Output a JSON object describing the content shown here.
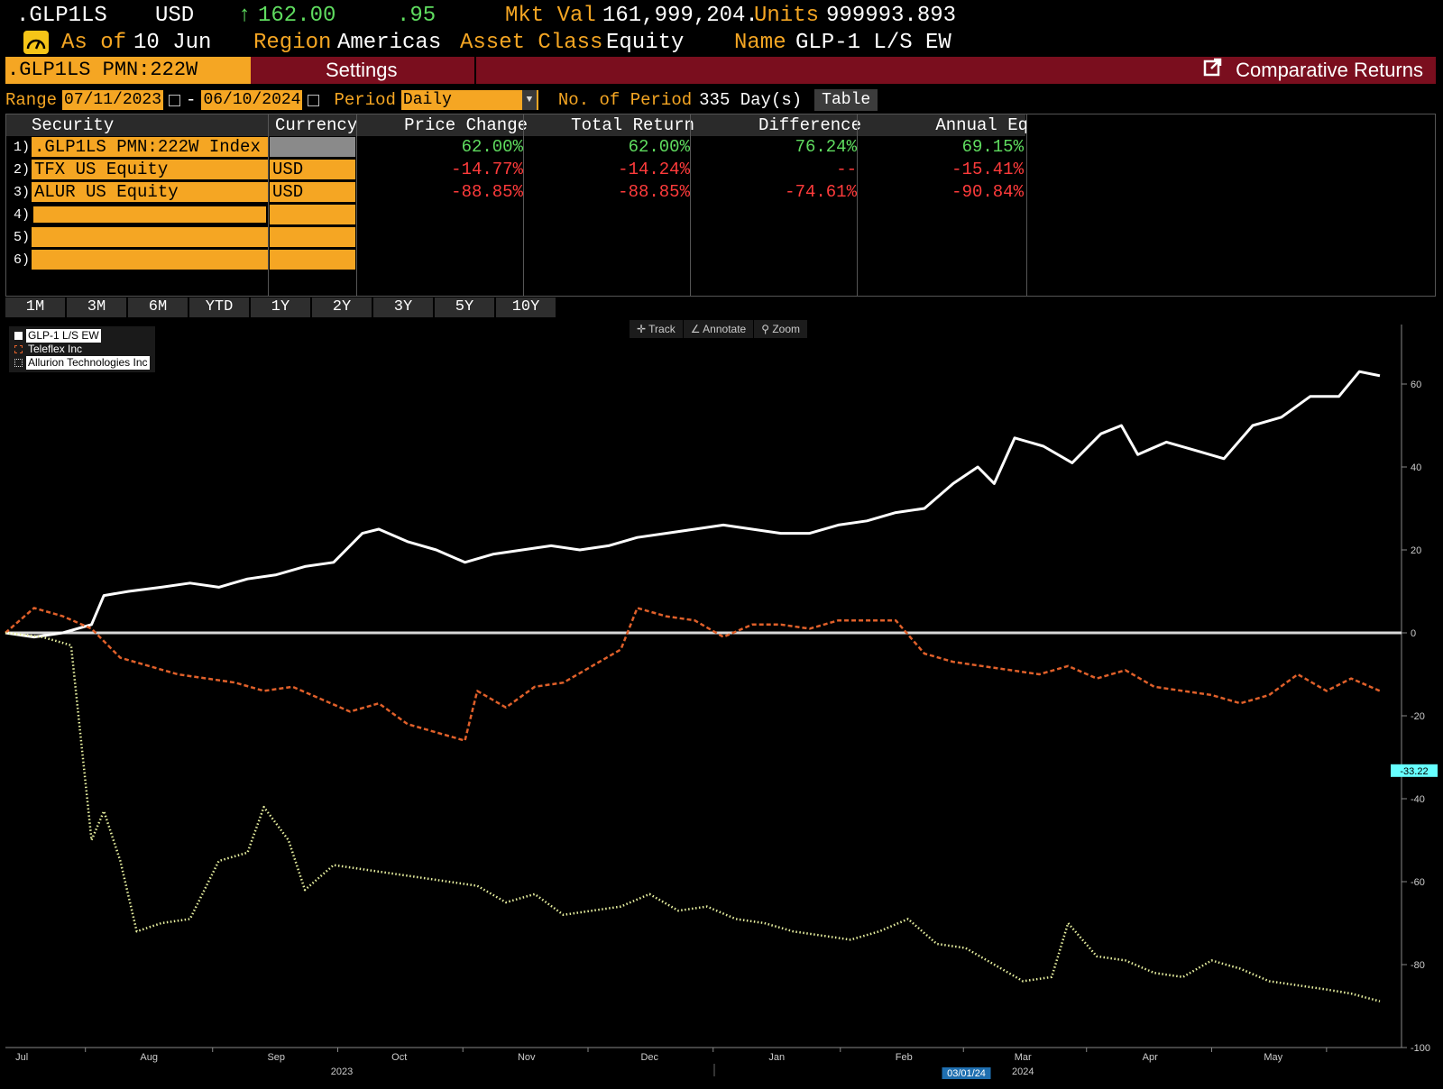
{
  "header": {
    "ticker": ".GLP1LS",
    "currency": "USD",
    "arrow": "↑",
    "price": "162.00",
    "change": ".95",
    "mkt_val_label": "Mkt Val",
    "mkt_val": "161,999,204.8",
    "units_label": "Units",
    "units": "999993.893",
    "as_of_label": "As of",
    "as_of": "10 Jun",
    "region_label": "Region",
    "region": "Americas",
    "asset_class_label": "Asset Class",
    "asset_class": "Equity",
    "name_label": "Name",
    "name": "GLP-1 L/S EW"
  },
  "toolbar": {
    "security_tab": ".GLP1LS PMN:222W Index",
    "settings": "Settings",
    "comparative_returns": "Comparative Returns"
  },
  "controls": {
    "range_label": "Range",
    "start_date": "07/11/2023",
    "dash": "-",
    "end_date": "06/10/2024",
    "period_label": "Period",
    "period": "Daily",
    "num_periods_label": "No. of Period",
    "num_periods": "335 Day(s)",
    "table_button": "Table"
  },
  "table": {
    "columns": [
      "Security",
      "Currency",
      "Price Change",
      "Total Return",
      "Difference",
      "Annual Eq"
    ],
    "rows": [
      {
        "num": "1)",
        "security": ".GLP1LS PMN:222W Index",
        "currency": "",
        "price_change": "62.00%",
        "total_return": "62.00%",
        "difference": "76.24%",
        "annual_eq": "69.15%"
      },
      {
        "num": "2)",
        "security": "TFX US Equity",
        "currency": "USD",
        "price_change": "-14.77%",
        "total_return": "-14.24%",
        "difference": "--",
        "annual_eq": "-15.41%"
      },
      {
        "num": "3)",
        "security": "ALUR US Equity",
        "currency": "USD",
        "price_change": "-88.85%",
        "total_return": "-88.85%",
        "difference": "-74.61%",
        "annual_eq": "-90.84%"
      },
      {
        "num": "4)",
        "security": "",
        "currency": "",
        "price_change": "",
        "total_return": "",
        "difference": "",
        "annual_eq": ""
      },
      {
        "num": "5)",
        "security": "",
        "currency": "",
        "price_change": "",
        "total_return": "",
        "difference": "",
        "annual_eq": ""
      },
      {
        "num": "6)",
        "security": "",
        "currency": "",
        "price_change": "",
        "total_return": "",
        "difference": "",
        "annual_eq": ""
      }
    ]
  },
  "period_buttons": [
    "1M",
    "3M",
    "6M",
    "YTD",
    "1Y",
    "2Y",
    "3Y",
    "5Y",
    "10Y"
  ],
  "chart_tools": [
    "Track",
    "Annotate",
    "Zoom"
  ],
  "colors": {
    "accent_orange": "#f5a623",
    "bar_red": "#7a0e1e",
    "glp1": "#ffffff",
    "teleflex": "#e0602a",
    "allurion": "#e8f0a0",
    "cursor_label": "#66ffff"
  },
  "chart_data": {
    "type": "line",
    "title": "",
    "xlabel": "",
    "ylabel": "",
    "legend_position": "top-left",
    "y_ticks": [
      "60",
      "40",
      "20",
      "0",
      "-20",
      "-40",
      "-60",
      "-80",
      "-100"
    ],
    "ylim": [
      -100,
      70
    ],
    "x_range": [
      "2023-07-11",
      "2024-06-10"
    ],
    "month_labels": [
      {
        "label": "Jul",
        "date": "2023-07-15"
      },
      {
        "label": "Aug",
        "date": "2023-08-15"
      },
      {
        "label": "Sep",
        "date": "2023-09-15"
      },
      {
        "label": "Oct",
        "date": "2023-10-15"
      },
      {
        "label": "Nov",
        "date": "2023-11-15"
      },
      {
        "label": "Dec",
        "date": "2023-12-15"
      },
      {
        "label": "Jan",
        "date": "2024-01-15"
      },
      {
        "label": "Feb",
        "date": "2024-02-15"
      },
      {
        "label": "Mar",
        "date": "2024-03-15"
      },
      {
        "label": "Apr",
        "date": "2024-04-15"
      },
      {
        "label": "May",
        "date": "2024-05-15"
      }
    ],
    "year_labels": [
      {
        "label": "2023",
        "date": "2023-10-01"
      },
      {
        "label": "2024",
        "date": "2024-03-15"
      }
    ],
    "cursor_date_label": "03/01/24",
    "cursor_date": "2024-03-01",
    "cursor_value_label": "-33.22",
    "cursor_value": -33.22,
    "series": [
      {
        "name": "GLP-1 L/S EW",
        "style": "solid",
        "points": [
          [
            "2023-07-11",
            0
          ],
          [
            "2023-07-18",
            -1
          ],
          [
            "2023-07-25",
            0
          ],
          [
            "2023-08-01",
            2
          ],
          [
            "2023-08-04",
            9
          ],
          [
            "2023-08-10",
            10
          ],
          [
            "2023-08-18",
            11
          ],
          [
            "2023-08-25",
            12
          ],
          [
            "2023-09-01",
            11
          ],
          [
            "2023-09-08",
            13
          ],
          [
            "2023-09-15",
            14
          ],
          [
            "2023-09-22",
            16
          ],
          [
            "2023-09-29",
            17
          ],
          [
            "2023-10-06",
            24
          ],
          [
            "2023-10-10",
            25
          ],
          [
            "2023-10-17",
            22
          ],
          [
            "2023-10-24",
            20
          ],
          [
            "2023-10-31",
            17
          ],
          [
            "2023-11-07",
            19
          ],
          [
            "2023-11-14",
            20
          ],
          [
            "2023-11-21",
            21
          ],
          [
            "2023-11-28",
            20
          ],
          [
            "2023-12-05",
            21
          ],
          [
            "2023-12-12",
            23
          ],
          [
            "2023-12-19",
            24
          ],
          [
            "2023-12-26",
            25
          ],
          [
            "2024-01-02",
            26
          ],
          [
            "2024-01-09",
            25
          ],
          [
            "2024-01-16",
            24
          ],
          [
            "2024-01-23",
            24
          ],
          [
            "2024-01-30",
            26
          ],
          [
            "2024-02-06",
            27
          ],
          [
            "2024-02-13",
            29
          ],
          [
            "2024-02-20",
            30
          ],
          [
            "2024-02-27",
            36
          ],
          [
            "2024-03-04",
            40
          ],
          [
            "2024-03-08",
            36
          ],
          [
            "2024-03-13",
            47
          ],
          [
            "2024-03-20",
            45
          ],
          [
            "2024-03-27",
            41
          ],
          [
            "2024-04-03",
            48
          ],
          [
            "2024-04-08",
            50
          ],
          [
            "2024-04-12",
            43
          ],
          [
            "2024-04-19",
            46
          ],
          [
            "2024-04-26",
            44
          ],
          [
            "2024-05-03",
            42
          ],
          [
            "2024-05-10",
            50
          ],
          [
            "2024-05-17",
            52
          ],
          [
            "2024-05-24",
            57
          ],
          [
            "2024-05-31",
            57
          ],
          [
            "2024-06-05",
            63
          ],
          [
            "2024-06-10",
            62
          ]
        ]
      },
      {
        "name": "Teleflex Inc",
        "style": "dashed",
        "points": [
          [
            "2023-07-11",
            0
          ],
          [
            "2023-07-18",
            6
          ],
          [
            "2023-07-25",
            4
          ],
          [
            "2023-08-01",
            1
          ],
          [
            "2023-08-08",
            -6
          ],
          [
            "2023-08-15",
            -8
          ],
          [
            "2023-08-22",
            -10
          ],
          [
            "2023-08-29",
            -11
          ],
          [
            "2023-09-05",
            -12
          ],
          [
            "2023-09-12",
            -14
          ],
          [
            "2023-09-19",
            -13
          ],
          [
            "2023-09-26",
            -16
          ],
          [
            "2023-10-03",
            -19
          ],
          [
            "2023-10-10",
            -17
          ],
          [
            "2023-10-17",
            -22
          ],
          [
            "2023-10-24",
            -24
          ],
          [
            "2023-10-31",
            -26
          ],
          [
            "2023-11-03",
            -14
          ],
          [
            "2023-11-10",
            -18
          ],
          [
            "2023-11-17",
            -13
          ],
          [
            "2023-11-24",
            -12
          ],
          [
            "2023-12-01",
            -8
          ],
          [
            "2023-12-08",
            -4
          ],
          [
            "2023-12-12",
            6
          ],
          [
            "2023-12-19",
            4
          ],
          [
            "2023-12-26",
            3
          ],
          [
            "2024-01-02",
            -1
          ],
          [
            "2024-01-09",
            2
          ],
          [
            "2024-01-16",
            2
          ],
          [
            "2024-01-23",
            1
          ],
          [
            "2024-01-30",
            3
          ],
          [
            "2024-02-06",
            3
          ],
          [
            "2024-02-13",
            3
          ],
          [
            "2024-02-20",
            -5
          ],
          [
            "2024-02-27",
            -7
          ],
          [
            "2024-03-05",
            -8
          ],
          [
            "2024-03-12",
            -9
          ],
          [
            "2024-03-19",
            -10
          ],
          [
            "2024-03-26",
            -8
          ],
          [
            "2024-04-02",
            -11
          ],
          [
            "2024-04-09",
            -9
          ],
          [
            "2024-04-16",
            -13
          ],
          [
            "2024-04-23",
            -14
          ],
          [
            "2024-04-30",
            -15
          ],
          [
            "2024-05-07",
            -17
          ],
          [
            "2024-05-14",
            -15
          ],
          [
            "2024-05-21",
            -10
          ],
          [
            "2024-05-28",
            -14
          ],
          [
            "2024-06-03",
            -11
          ],
          [
            "2024-06-10",
            -14
          ]
        ]
      },
      {
        "name": "Allurion Technologies Inc",
        "style": "dotted",
        "points": [
          [
            "2023-07-11",
            0
          ],
          [
            "2023-07-20",
            -1
          ],
          [
            "2023-07-27",
            -3
          ],
          [
            "2023-08-01",
            -50
          ],
          [
            "2023-08-04",
            -43
          ],
          [
            "2023-08-08",
            -55
          ],
          [
            "2023-08-12",
            -72
          ],
          [
            "2023-08-18",
            -70
          ],
          [
            "2023-08-25",
            -69
          ],
          [
            "2023-09-01",
            -55
          ],
          [
            "2023-09-08",
            -53
          ],
          [
            "2023-09-12",
            -42
          ],
          [
            "2023-09-18",
            -50
          ],
          [
            "2023-09-22",
            -62
          ],
          [
            "2023-09-29",
            -56
          ],
          [
            "2023-10-06",
            -57
          ],
          [
            "2023-10-13",
            -58
          ],
          [
            "2023-10-20",
            -59
          ],
          [
            "2023-10-27",
            -60
          ],
          [
            "2023-11-03",
            -61
          ],
          [
            "2023-11-10",
            -65
          ],
          [
            "2023-11-17",
            -63
          ],
          [
            "2023-11-24",
            -68
          ],
          [
            "2023-12-01",
            -67
          ],
          [
            "2023-12-08",
            -66
          ],
          [
            "2023-12-15",
            -63
          ],
          [
            "2023-12-22",
            -67
          ],
          [
            "2023-12-29",
            -66
          ],
          [
            "2024-01-05",
            -69
          ],
          [
            "2024-01-12",
            -70
          ],
          [
            "2024-01-19",
            -72
          ],
          [
            "2024-01-26",
            -73
          ],
          [
            "2024-02-02",
            -74
          ],
          [
            "2024-02-09",
            -72
          ],
          [
            "2024-02-16",
            -69
          ],
          [
            "2024-02-23",
            -75
          ],
          [
            "2024-03-01",
            -76
          ],
          [
            "2024-03-08",
            -80
          ],
          [
            "2024-03-15",
            -84
          ],
          [
            "2024-03-22",
            -83
          ],
          [
            "2024-03-26",
            -70
          ],
          [
            "2024-04-02",
            -78
          ],
          [
            "2024-04-09",
            -79
          ],
          [
            "2024-04-16",
            -82
          ],
          [
            "2024-04-23",
            -83
          ],
          [
            "2024-04-30",
            -79
          ],
          [
            "2024-05-07",
            -81
          ],
          [
            "2024-05-14",
            -84
          ],
          [
            "2024-05-21",
            -85
          ],
          [
            "2024-05-28",
            -86
          ],
          [
            "2024-06-03",
            -87
          ],
          [
            "2024-06-10",
            -88.85
          ]
        ]
      }
    ]
  }
}
